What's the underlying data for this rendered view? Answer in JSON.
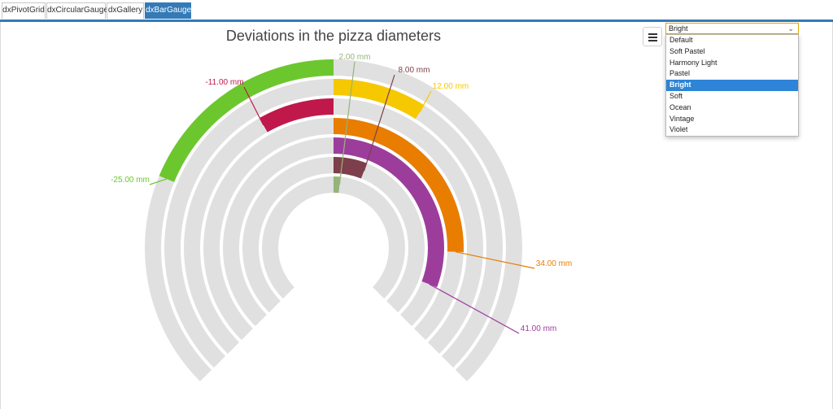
{
  "tabs": [
    {
      "label": "dxPivotGrid",
      "active": false
    },
    {
      "label": "dxCircularGauge",
      "active": false
    },
    {
      "label": "dxGallery",
      "active": false
    },
    {
      "label": "dxBarGauge",
      "active": true
    }
  ],
  "palette_select": {
    "selected": "Bright",
    "options": [
      "Default",
      "Soft Pastel",
      "Harmony Light",
      "Pastel",
      "Bright",
      "Soft",
      "Ocean",
      "Vintage",
      "Violet"
    ]
  },
  "colors": {
    "accent": "#337ab7",
    "track": "#e0e0e0",
    "selection": "#2e84d6"
  },
  "chart_data": {
    "type": "bar-gauge",
    "title": "Deviations in the pizza diameters",
    "scale": {
      "start": -50,
      "end": 50,
      "start_angle_deg": 225,
      "end_angle_deg": -45,
      "base_value": 0
    },
    "value_label_suffix": " mm",
    "bars": [
      {
        "value": 2,
        "label": "2.00 mm",
        "color": "#96b47a"
      },
      {
        "value": 8,
        "label": "8.00 mm",
        "color": "#7d3f4b"
      },
      {
        "value": 41,
        "label": "41.00 mm",
        "color": "#9c3d9c"
      },
      {
        "value": 34,
        "label": "34.00 mm",
        "color": "#e87d00"
      },
      {
        "value": -11,
        "label": "-11.00 mm",
        "color": "#c0184a"
      },
      {
        "value": 12,
        "label": "12.00 mm",
        "color": "#f6c800"
      },
      {
        "value": -25,
        "label": "-25.00 mm",
        "color": "#6cc72e"
      }
    ]
  }
}
